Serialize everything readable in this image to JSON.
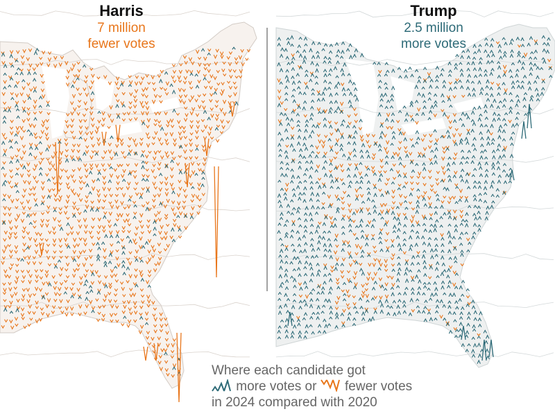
{
  "panels": {
    "harris": {
      "name": "Harris",
      "stat_line1": "7 million",
      "stat_line2": "fewer votes",
      "color": "#e8761b"
    },
    "trump": {
      "name": "Trump",
      "stat_line1": "2.5 million",
      "stat_line2": "more votes",
      "color": "#2e6b78"
    }
  },
  "legend": {
    "line1": "Where each candidate got",
    "more_text": "more votes or",
    "fewer_text": "fewer votes",
    "line3": "in 2024 compared with 2020",
    "more_icon": "teal-up-spikes-icon",
    "fewer_icon": "orange-down-spikes-icon"
  },
  "colors": {
    "more": "#2e6b78",
    "fewer": "#e8761b",
    "land": "#f7f2ee",
    "land_trump": "#eef0f0",
    "border": "#c8c8c8"
  }
}
